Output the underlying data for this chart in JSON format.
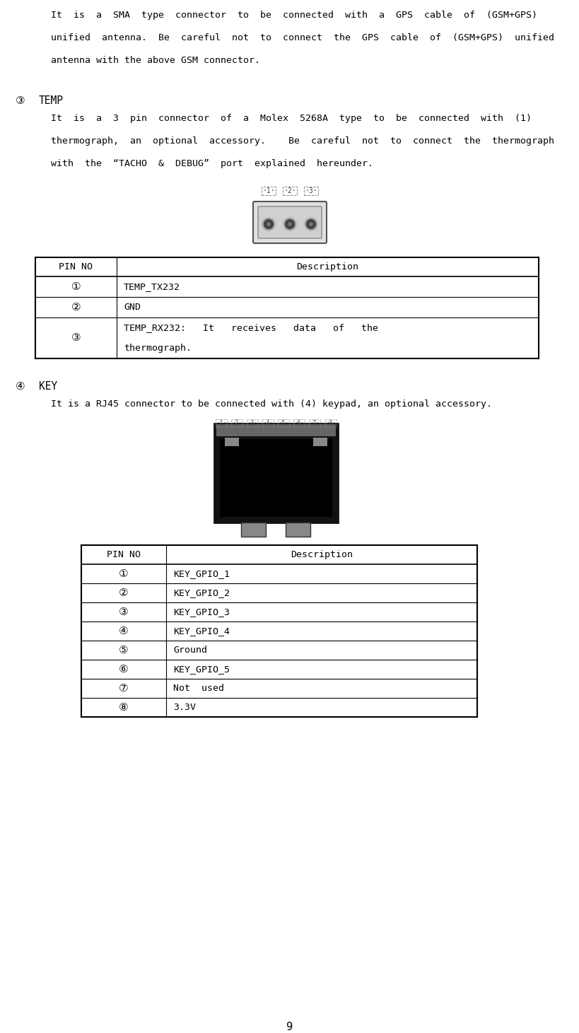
{
  "page_number": "9",
  "bg_color": "#ffffff",
  "intro_text_line1": "It  is  a  SMA  type  connector  to  be  connected  with  a  GPS  cable  of  (GSM+GPS)",
  "intro_text_line2": "unified  antenna.  Be  careful  not  to  connect  the  GPS  cable  of  (GSM+GPS)  unified",
  "intro_text_line3": "antenna with the above GSM connector.",
  "section3_label": "③",
  "section3_title": "TEMP",
  "section3_line1": "It  is  a  3  pin  connector  of  a  Molex  5268A  type  to  be  connected  with  (1)",
  "section3_line2": "thermograph,  an  optional  accessory.    Be  careful  not  to  connect  the  thermograph",
  "section3_line3": "with  the  “TACHO  &  DEBUG”  port  explained  hereunder.",
  "temp_table_headers": [
    "PIN NO",
    "Description"
  ],
  "temp_table_rows": [
    [
      "①",
      "TEMP_TX232"
    ],
    [
      "②",
      "GND"
    ],
    [
      "③",
      "TEMP_RX232:   It   receives   data   of   the\nthermograph."
    ]
  ],
  "section4_label": "④",
  "section4_title": "KEY",
  "section4_line1": "It is a RJ45 connector to be connected with (4) keypad, an optional accessory.",
  "key_table_headers": [
    "PIN NO",
    "Description"
  ],
  "key_table_rows": [
    [
      "①",
      "KEY_GPIO_1"
    ],
    [
      "②",
      "KEY_GPIO_2"
    ],
    [
      "③",
      "KEY_GPIO_3"
    ],
    [
      "④",
      "KEY_GPIO_4"
    ],
    [
      "⑤",
      "Ground"
    ],
    [
      "⑥",
      "KEY_GPIO_5"
    ],
    [
      "⑦",
      "Not  used"
    ],
    [
      "⑧",
      "3.3V"
    ]
  ]
}
